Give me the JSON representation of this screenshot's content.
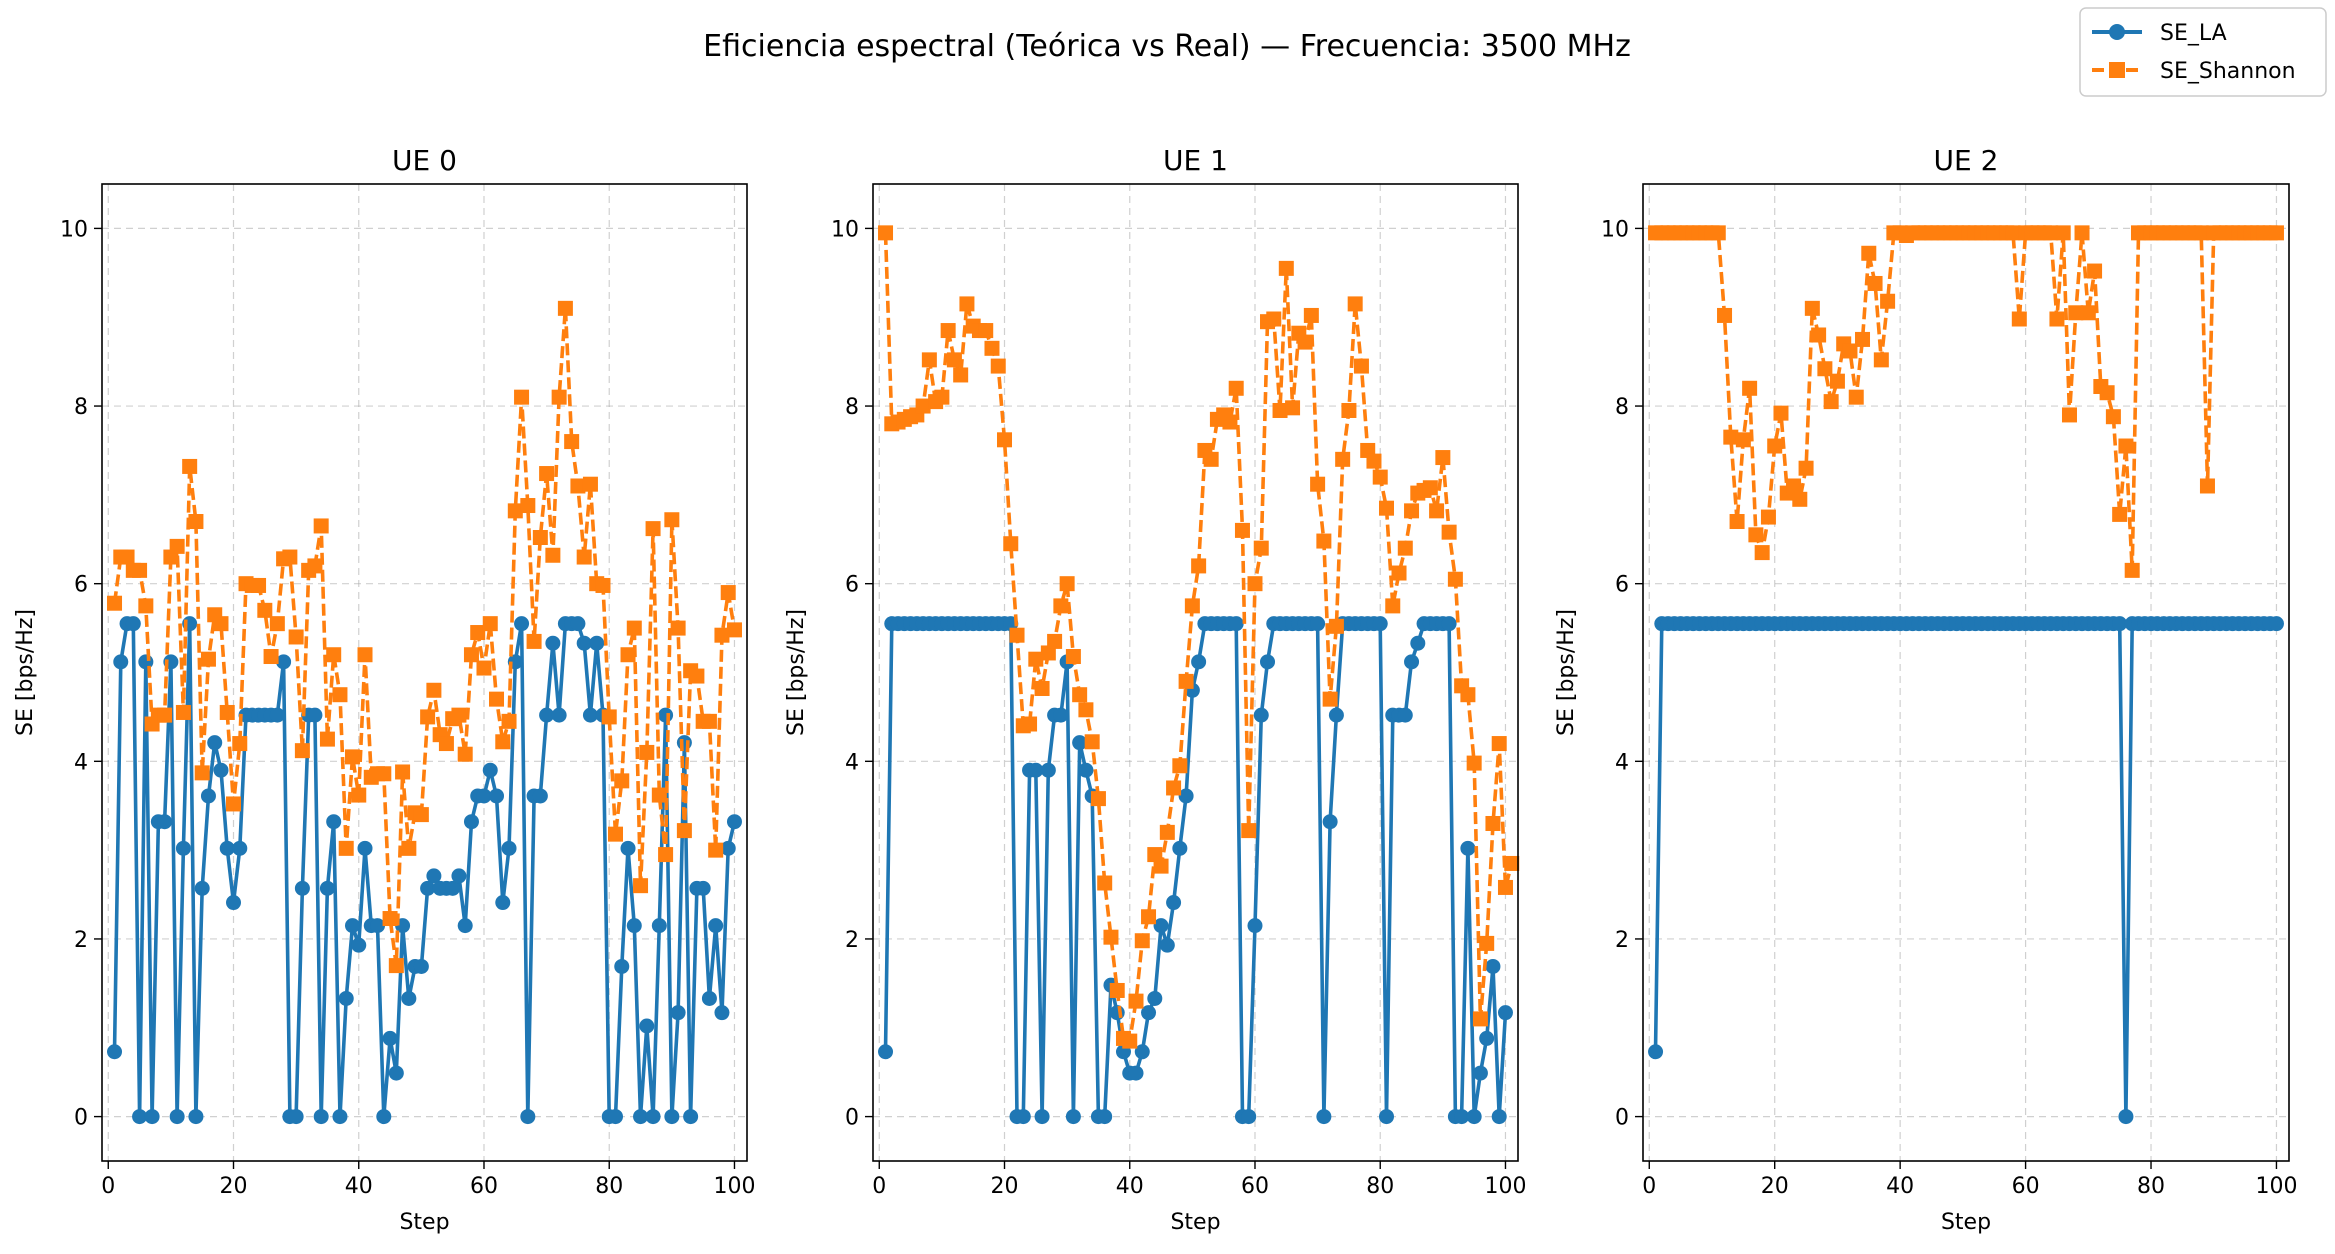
{
  "colors": {
    "se_la": "#1f77b4",
    "se_shannon": "#ff7f0e",
    "grid": "#b0b0b0"
  },
  "chart_data": {
    "title": "Eficiencia espectral (Teórica vs Real) — Frecuencia: 3500 MHz",
    "legend": {
      "placement": "top-right",
      "entries": [
        "SE_LA",
        "SE_Shannon"
      ]
    },
    "panels": [
      {
        "type": "line",
        "title": "UE 0",
        "xlabel": "Step",
        "ylabel": "SE [bps/Hz]",
        "xlim": [
          -1,
          102
        ],
        "ylim": [
          -0.5,
          10.5
        ],
        "xticks": [
          "0",
          "20",
          "40",
          "60",
          "80",
          "100"
        ],
        "yticks": [
          "0",
          "2",
          "4",
          "6",
          "8",
          "10"
        ],
        "grid": true,
        "series": [
          {
            "name": "SE_LA",
            "values": [
              0.73,
              5.12,
              5.55,
              5.55,
              0,
              5.12,
              0,
              3.32,
              3.32,
              5.12,
              0,
              3.02,
              5.55,
              0,
              2.57,
              3.61,
              4.21,
              3.9,
              3.02,
              2.41,
              3.02,
              4.52,
              4.52,
              4.52,
              4.52,
              4.52,
              4.52,
              5.12,
              0,
              0,
              2.57,
              4.52,
              4.52,
              0,
              2.57,
              3.32,
              0,
              1.33,
              2.15,
              1.93,
              3.02,
              2.15,
              2.15,
              0,
              0.88,
              0.49,
              2.15,
              1.33,
              1.69,
              1.69,
              2.57,
              2.71,
              2.57,
              2.57,
              2.57,
              2.71,
              2.15,
              3.32,
              3.61,
              3.61,
              3.9,
              3.61,
              2.41,
              3.02,
              5.12,
              5.55,
              0,
              3.61,
              3.61,
              4.52,
              5.33,
              4.52,
              5.55,
              5.55,
              5.55,
              5.33,
              4.52,
              5.33,
              4.52,
              0,
              0,
              1.69,
              3.02,
              2.15,
              0,
              1.02,
              0,
              2.15,
              4.52,
              0,
              1.17,
              4.21,
              0,
              2.57,
              2.57,
              1.33,
              2.15,
              1.17,
              3.02,
              3.32
            ]
          },
          {
            "name": "SE_Shannon",
            "values": [
              5.78,
              6.3,
              6.3,
              6.15,
              6.15,
              5.75,
              4.42,
              4.52,
              4.52,
              6.3,
              6.42,
              4.55,
              7.32,
              6.7,
              3.87,
              5.15,
              5.65,
              5.55,
              4.55,
              3.52,
              4.2,
              6.0,
              5.98,
              5.98,
              5.7,
              5.18,
              5.55,
              6.28,
              6.3,
              5.4,
              4.12,
              6.15,
              6.2,
              6.65,
              4.25,
              5.2,
              4.75,
              3.02,
              4.05,
              3.62,
              5.2,
              3.82,
              3.86,
              3.86,
              2.23,
              1.7,
              3.88,
              3.02,
              3.42,
              3.4,
              4.5,
              4.8,
              4.3,
              4.2,
              4.48,
              4.52,
              4.08,
              5.2,
              5.45,
              5.05,
              5.55,
              4.7,
              4.22,
              4.45,
              6.82,
              8.1,
              6.88,
              5.35,
              6.52,
              7.24,
              6.32,
              8.1,
              9.1,
              7.6,
              7.1,
              6.3,
              7.12,
              6.0,
              5.98,
              4.5,
              3.18,
              3.78,
              5.2,
              5.5,
              2.6,
              4.1,
              6.62,
              3.62,
              2.95,
              6.72,
              5.5,
              3.22,
              5.02,
              4.96,
              4.45,
              4.45,
              3.0,
              5.42,
              5.9,
              5.48
            ]
          }
        ]
      },
      {
        "type": "line",
        "title": "UE 1",
        "xlabel": "Step",
        "ylabel": "SE [bps/Hz]",
        "xlim": [
          -1,
          102
        ],
        "ylim": [
          -0.5,
          10.5
        ],
        "xticks": [
          "0",
          "20",
          "40",
          "60",
          "80",
          "100"
        ],
        "yticks": [
          "0",
          "2",
          "4",
          "6",
          "8",
          "10"
        ],
        "grid": true,
        "series": [
          {
            "name": "SE_LA",
            "values": [
              0.73,
              5.55,
              5.55,
              5.55,
              5.55,
              5.55,
              5.55,
              5.55,
              5.55,
              5.55,
              5.55,
              5.55,
              5.55,
              5.55,
              5.55,
              5.55,
              5.55,
              5.55,
              5.55,
              5.55,
              5.55,
              0,
              0,
              3.9,
              3.9,
              0,
              3.9,
              4.52,
              4.52,
              5.12,
              0,
              4.21,
              3.9,
              3.61,
              0,
              0,
              1.48,
              1.17,
              0.73,
              0.49,
              0.49,
              0.73,
              1.17,
              1.33,
              2.15,
              1.93,
              2.41,
              3.02,
              3.61,
              4.8,
              5.12,
              5.55,
              5.55,
              5.55,
              5.55,
              5.55,
              5.55,
              0,
              0,
              2.15,
              4.52,
              5.12,
              5.55,
              5.55,
              5.55,
              5.55,
              5.55,
              5.55,
              5.55,
              5.55,
              0,
              3.32,
              4.52,
              5.55,
              5.55,
              5.55,
              5.55,
              5.55,
              5.55,
              5.55,
              0,
              4.52,
              4.52,
              4.52,
              5.12,
              5.33,
              5.55,
              5.55,
              5.55,
              5.55,
              5.55,
              0,
              0,
              3.02,
              0,
              0.49,
              0.88,
              1.69,
              0,
              1.17
            ]
          },
          {
            "name": "SE_Shannon",
            "values": [
              9.95,
              7.8,
              7.82,
              7.85,
              7.88,
              7.9,
              8.0,
              8.52,
              8.05,
              8.1,
              8.85,
              8.52,
              8.35,
              9.15,
              8.9,
              8.85,
              8.85,
              8.65,
              8.45,
              7.62,
              6.45,
              5.42,
              4.4,
              4.42,
              5.15,
              4.82,
              5.22,
              5.35,
              5.75,
              6.0,
              5.18,
              4.75,
              4.58,
              4.22,
              3.58,
              2.63,
              2.02,
              1.42,
              0.88,
              0.85,
              1.3,
              1.98,
              2.25,
              2.95,
              2.82,
              3.2,
              3.7,
              3.95,
              4.9,
              5.75,
              6.2,
              7.5,
              7.4,
              7.85,
              7.9,
              7.82,
              8.2,
              6.6,
              3.22,
              6.0,
              6.4,
              8.95,
              8.98,
              7.95,
              9.55,
              7.98,
              8.82,
              8.72,
              9.02,
              7.12,
              6.48,
              4.7,
              5.52,
              7.4,
              7.95,
              9.15,
              8.45,
              7.5,
              7.38,
              7.2,
              6.85,
              5.75,
              6.12,
              6.4,
              6.82,
              7.02,
              7.05,
              7.08,
              6.82,
              7.42,
              6.58,
              6.05,
              4.85,
              4.75,
              3.98,
              1.1,
              1.95,
              3.3,
              4.2,
              2.58,
              2.85
            ]
          }
        ]
      },
      {
        "type": "line",
        "title": "UE 2",
        "xlabel": "Step",
        "ylabel": "SE [bps/Hz]",
        "xlim": [
          -1,
          102
        ],
        "ylim": [
          -0.5,
          10.5
        ],
        "xticks": [
          "0",
          "20",
          "40",
          "60",
          "80",
          "100"
        ],
        "yticks": [
          "0",
          "2",
          "4",
          "6",
          "8",
          "10"
        ],
        "grid": true,
        "series": [
          {
            "name": "SE_LA",
            "values": [
              0.73,
              5.55,
              5.55,
              5.55,
              5.55,
              5.55,
              5.55,
              5.55,
              5.55,
              5.55,
              5.55,
              5.55,
              5.55,
              5.55,
              5.55,
              5.55,
              5.55,
              5.55,
              5.55,
              5.55,
              5.55,
              5.55,
              5.55,
              5.55,
              5.55,
              5.55,
              5.55,
              5.55,
              5.55,
              5.55,
              5.55,
              5.55,
              5.55,
              5.55,
              5.55,
              5.55,
              5.55,
              5.55,
              5.55,
              5.55,
              5.55,
              5.55,
              5.55,
              5.55,
              5.55,
              5.55,
              5.55,
              5.55,
              5.55,
              5.55,
              5.55,
              5.55,
              5.55,
              5.55,
              5.55,
              5.55,
              5.55,
              5.55,
              5.55,
              5.55,
              5.55,
              5.55,
              5.55,
              5.55,
              5.55,
              5.55,
              5.55,
              5.55,
              5.55,
              5.55,
              5.55,
              5.55,
              5.55,
              5.55,
              5.55,
              0,
              5.55,
              5.55,
              5.55,
              5.55,
              5.55,
              5.55,
              5.55,
              5.55,
              5.55,
              5.55,
              5.55,
              5.55,
              5.55,
              5.55,
              5.55,
              5.55,
              5.55,
              5.55,
              5.55,
              5.55,
              5.55,
              5.55,
              5.55,
              5.55
            ]
          },
          {
            "name": "SE_Shannon",
            "values": [
              9.95,
              9.95,
              9.95,
              9.95,
              9.95,
              9.95,
              9.95,
              9.95,
              9.95,
              9.95,
              9.95,
              9.02,
              7.65,
              6.7,
              7.62,
              8.2,
              6.55,
              6.35,
              6.75,
              7.55,
              7.92,
              7.02,
              7.1,
              6.95,
              7.3,
              9.1,
              8.8,
              8.42,
              8.05,
              8.28,
              8.7,
              8.62,
              8.1,
              8.75,
              9.72,
              9.38,
              8.52,
              9.18,
              9.95,
              9.95,
              9.92,
              9.95,
              9.95,
              9.95,
              9.95,
              9.95,
              9.95,
              9.95,
              9.95,
              9.95,
              9.95,
              9.95,
              9.95,
              9.95,
              9.95,
              9.95,
              9.95,
              9.95,
              8.98,
              9.95,
              9.95,
              9.95,
              9.95,
              9.95,
              8.98,
              9.95,
              7.9,
              9.05,
              9.95,
              9.05,
              9.52,
              8.22,
              8.15,
              7.88,
              6.78,
              7.55,
              6.15,
              9.95,
              9.95,
              9.95,
              9.95,
              9.95,
              9.95,
              9.95,
              9.95,
              9.95,
              9.95,
              9.95,
              7.1,
              9.95,
              9.95,
              9.95,
              9.95,
              9.95,
              9.95,
              9.95,
              9.95,
              9.95,
              9.95,
              9.95
            ]
          }
        ]
      }
    ]
  }
}
